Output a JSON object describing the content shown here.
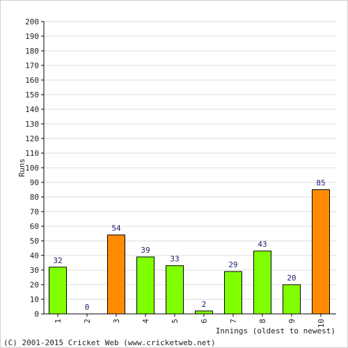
{
  "chart_data": {
    "type": "bar",
    "title": "",
    "xlabel": "Innings (oldest to newest)",
    "ylabel": "Runs",
    "ylim": [
      0,
      200
    ],
    "ytick_step": 10,
    "grid": true,
    "categories": [
      "1",
      "2",
      "3",
      "4",
      "5",
      "6",
      "7",
      "8",
      "9",
      "10"
    ],
    "values": [
      32,
      0,
      54,
      39,
      33,
      2,
      29,
      43,
      20,
      85
    ],
    "data_labels": [
      "32",
      "0",
      "54",
      "39",
      "33",
      "2",
      "29",
      "43",
      "20",
      "85"
    ],
    "bar_colors": [
      "#80ff00",
      "#80ff00",
      "#ff8c00",
      "#80ff00",
      "#80ff00",
      "#80ff00",
      "#80ff00",
      "#80ff00",
      "#80ff00",
      "#ff8c00"
    ]
  },
  "footer": {
    "copyright": "(C) 2001-2015 Cricket Web (www.cricketweb.net)"
  }
}
